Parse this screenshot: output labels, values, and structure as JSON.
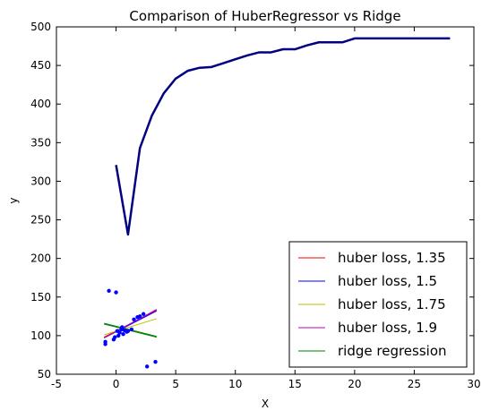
{
  "chart_data": {
    "type": "line",
    "title": "Comparison of HuberRegressor vs Ridge",
    "xlabel": "X",
    "ylabel": "y",
    "xlim": [
      -5,
      30
    ],
    "ylim": [
      50,
      500
    ],
    "xticks": [
      -5,
      0,
      5,
      10,
      15,
      20,
      25,
      30
    ],
    "yticks": [
      50,
      100,
      150,
      200,
      250,
      300,
      350,
      400,
      450,
      500
    ],
    "grid": false,
    "legend_position": "bottom-right",
    "colors": {
      "scatter": "#0000ff",
      "long_line": "#000080",
      "huber_135": "#ff0000",
      "huber_15": "#0000ff",
      "huber_175": "#bfbf00",
      "huber_19": "#bf00bf",
      "ridge": "#008000"
    },
    "scatter_points": [
      {
        "x": -0.9,
        "y": 92
      },
      {
        "x": -0.9,
        "y": 89
      },
      {
        "x": -0.6,
        "y": 158
      },
      {
        "x": 0.0,
        "y": 156
      },
      {
        "x": -0.2,
        "y": 95
      },
      {
        "x": -0.1,
        "y": 98
      },
      {
        "x": 0.2,
        "y": 100
      },
      {
        "x": 0.3,
        "y": 104
      },
      {
        "x": 0.1,
        "y": 106
      },
      {
        "x": 0.45,
        "y": 108
      },
      {
        "x": 0.5,
        "y": 111
      },
      {
        "x": 0.6,
        "y": 102
      },
      {
        "x": 0.7,
        "y": 107
      },
      {
        "x": 0.9,
        "y": 105
      },
      {
        "x": 1.0,
        "y": 106
      },
      {
        "x": 1.3,
        "y": 108
      },
      {
        "x": 1.5,
        "y": 121
      },
      {
        "x": 1.8,
        "y": 124
      },
      {
        "x": 2.0,
        "y": 125
      },
      {
        "x": 2.3,
        "y": 128
      },
      {
        "x": 2.6,
        "y": 60
      },
      {
        "x": 3.3,
        "y": 66
      }
    ],
    "long_line": {
      "x": [
        0,
        1,
        2,
        3,
        4,
        5,
        6,
        7,
        8,
        9,
        10,
        11,
        12,
        13,
        14,
        15,
        16,
        17,
        18,
        19,
        20,
        21,
        22,
        23,
        24,
        25,
        26,
        27,
        28
      ],
      "y": [
        321,
        231,
        343,
        385,
        414,
        433,
        443,
        447,
        448,
        453,
        458,
        463,
        467,
        467,
        471,
        471,
        476,
        480,
        480,
        480,
        485,
        485,
        485,
        485,
        485,
        485,
        485,
        485,
        485
      ]
    },
    "series": [
      {
        "name": "huber loss, 1.35",
        "x": [
          -1,
          3.4
        ],
        "y": [
          98,
          133
        ]
      },
      {
        "name": "huber loss, 1.5",
        "x": [
          -1,
          3.4
        ],
        "y": [
          97,
          132
        ]
      },
      {
        "name": "huber loss, 1.75",
        "x": [
          -1,
          3.4
        ],
        "y": [
          101,
          122
        ]
      },
      {
        "name": "huber loss, 1.9",
        "x": [
          -1,
          3.4
        ],
        "y": [
          97,
          134
        ]
      },
      {
        "name": "ridge regression",
        "x": [
          -1,
          3.4
        ],
        "y": [
          116,
          99
        ]
      }
    ],
    "extra_lines": [
      {
        "x": [
          -1,
          3.4
        ],
        "y": [
          115,
          98
        ],
        "color": "#008000"
      }
    ]
  }
}
